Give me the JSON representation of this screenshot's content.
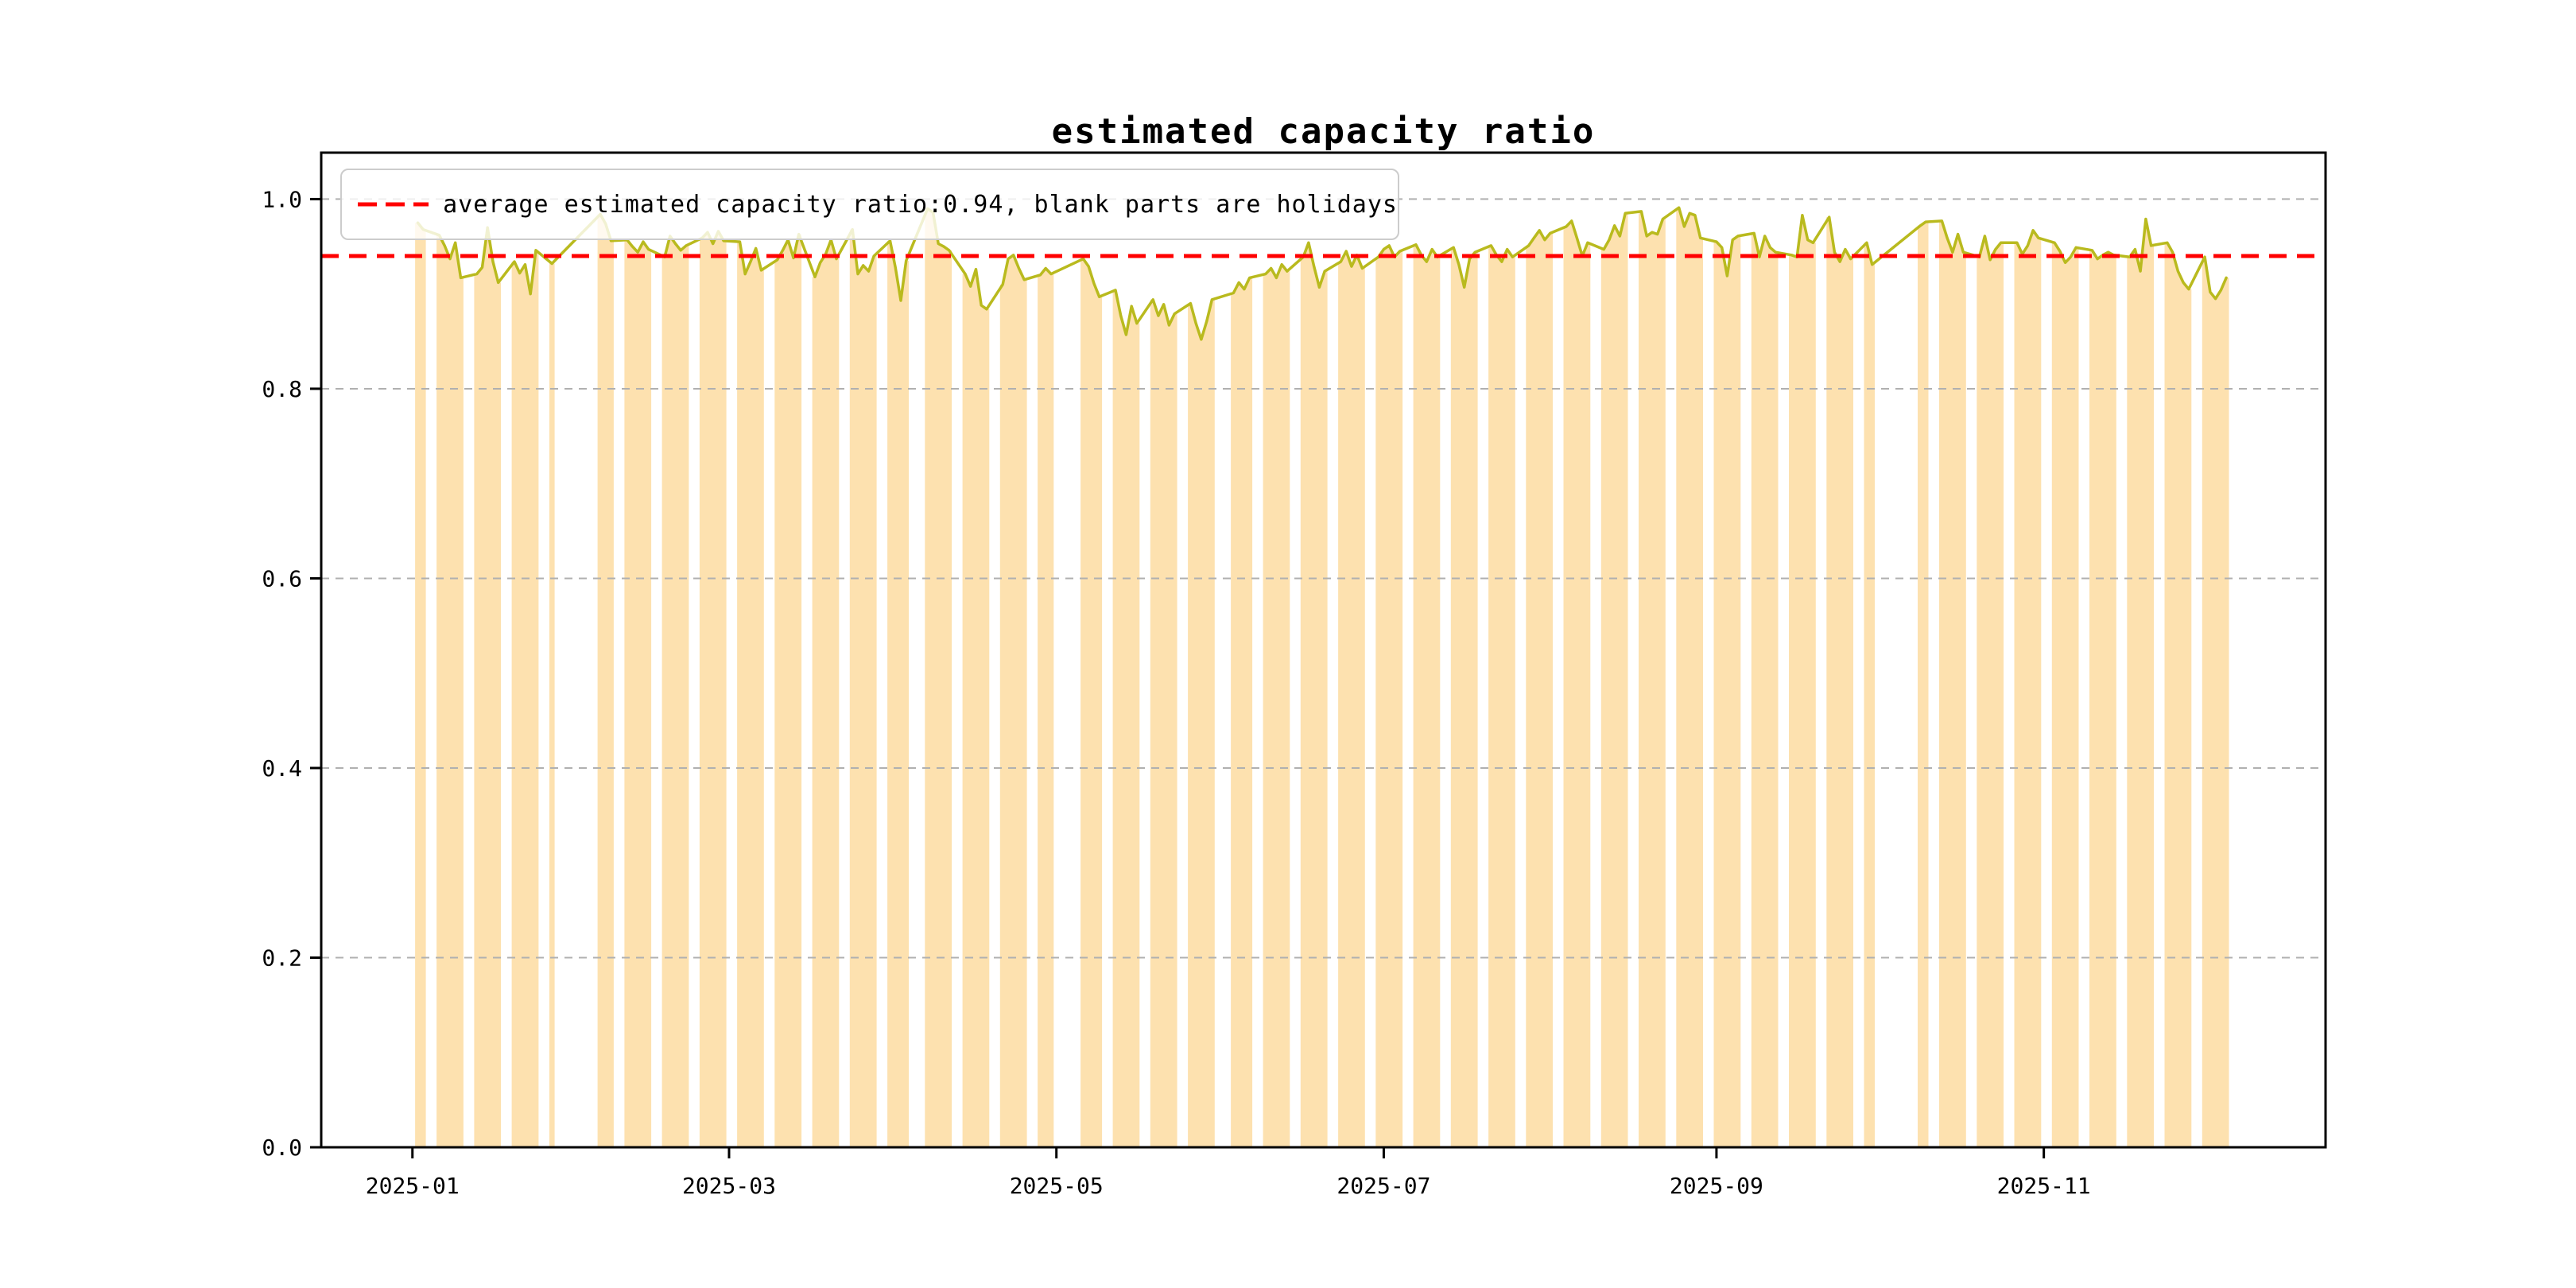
{
  "page": {
    "background": "#ffffff"
  },
  "chart_data": {
    "type": "area",
    "title": "estimated capacity ratio",
    "xlabel": "",
    "ylabel": "",
    "legend": {
      "label": "average estimated capacity ratio:0.94, blank parts are holidays",
      "position": "upper left",
      "sample_style": "red-dashed-line"
    },
    "average_line": {
      "value": 0.94,
      "style": "dashed",
      "color": "#ff0000"
    },
    "ylim": [
      0.0,
      1.049
    ],
    "xlim_days": [
      -17,
      356.5
    ],
    "x_epoch": "2025-01-01",
    "grid": {
      "axis": "y",
      "style": "dashed",
      "color": "#b0b0b0"
    },
    "yticks": [
      {
        "label": "0.0",
        "value": 0.0
      },
      {
        "label": "0.2",
        "value": 0.2
      },
      {
        "label": "0.4",
        "value": 0.4
      },
      {
        "label": "0.6",
        "value": 0.6
      },
      {
        "label": "0.8",
        "value": 0.8
      },
      {
        "label": "1.0",
        "value": 1.0
      }
    ],
    "xticks": [
      {
        "label": "2025-01",
        "date": "2025-01-01"
      },
      {
        "label": "2025-03",
        "date": "2025-03-01"
      },
      {
        "label": "2025-05",
        "date": "2025-05-01"
      },
      {
        "label": "2025-07",
        "date": "2025-07-01"
      },
      {
        "label": "2025-09",
        "date": "2025-09-01"
      },
      {
        "label": "2025-11",
        "date": "2025-11-01"
      }
    ],
    "colors": {
      "line": "#b9ba1e",
      "fill": "#fde1af",
      "average_line": "#ff0000",
      "grid": "#b0b0b0",
      "spine": "#000000",
      "legend_border": "#cccccc"
    },
    "series": [
      {
        "name": "estimated capacity ratio",
        "points": [
          [
            "2025-01-02",
            0.975
          ],
          [
            "2025-01-03",
            0.968
          ],
          [
            "2025-01-06",
            0.962
          ],
          [
            "2025-01-07",
            0.951
          ],
          [
            "2025-01-08",
            0.937
          ],
          [
            "2025-01-09",
            0.954
          ],
          [
            "2025-01-10",
            0.917
          ],
          [
            "2025-01-13",
            0.921
          ],
          [
            "2025-01-14",
            0.928
          ],
          [
            "2025-01-15",
            0.97
          ],
          [
            "2025-01-16",
            0.934
          ],
          [
            "2025-01-17",
            0.912
          ],
          [
            "2025-01-20",
            0.934
          ],
          [
            "2025-01-21",
            0.922
          ],
          [
            "2025-01-22",
            0.931
          ],
          [
            "2025-01-23",
            0.9
          ],
          [
            "2025-01-24",
            0.946
          ],
          [
            "2025-01-27",
            0.932
          ],
          [
            "2025-02-05",
            0.984
          ],
          [
            "2025-02-06",
            0.974
          ],
          [
            "2025-02-07",
            0.956
          ],
          [
            "2025-02-10",
            0.957
          ],
          [
            "2025-02-11",
            0.95
          ],
          [
            "2025-02-12",
            0.944
          ],
          [
            "2025-02-13",
            0.955
          ],
          [
            "2025-02-14",
            0.947
          ],
          [
            "2025-02-17",
            0.939
          ],
          [
            "2025-02-18",
            0.961
          ],
          [
            "2025-02-19",
            0.953
          ],
          [
            "2025-02-20",
            0.946
          ],
          [
            "2025-02-21",
            0.951
          ],
          [
            "2025-02-24",
            0.959
          ],
          [
            "2025-02-25",
            0.965
          ],
          [
            "2025-02-26",
            0.953
          ],
          [
            "2025-02-27",
            0.966
          ],
          [
            "2025-02-28",
            0.956
          ],
          [
            "2025-03-03",
            0.955
          ],
          [
            "2025-03-04",
            0.921
          ],
          [
            "2025-03-05",
            0.934
          ],
          [
            "2025-03-06",
            0.948
          ],
          [
            "2025-03-07",
            0.925
          ],
          [
            "2025-03-10",
            0.936
          ],
          [
            "2025-03-11",
            0.946
          ],
          [
            "2025-03-12",
            0.957
          ],
          [
            "2025-03-13",
            0.938
          ],
          [
            "2025-03-14",
            0.963
          ],
          [
            "2025-03-17",
            0.918
          ],
          [
            "2025-03-18",
            0.933
          ],
          [
            "2025-03-19",
            0.942
          ],
          [
            "2025-03-20",
            0.957
          ],
          [
            "2025-03-21",
            0.937
          ],
          [
            "2025-03-24",
            0.968
          ],
          [
            "2025-03-25",
            0.921
          ],
          [
            "2025-03-26",
            0.93
          ],
          [
            "2025-03-27",
            0.924
          ],
          [
            "2025-03-28",
            0.94
          ],
          [
            "2025-03-31",
            0.956
          ],
          [
            "2025-04-01",
            0.928
          ],
          [
            "2025-04-02",
            0.893
          ],
          [
            "2025-04-03",
            0.935
          ],
          [
            "2025-04-07",
            0.99
          ],
          [
            "2025-04-08",
            0.986
          ],
          [
            "2025-04-09",
            0.953
          ],
          [
            "2025-04-10",
            0.95
          ],
          [
            "2025-04-11",
            0.946
          ],
          [
            "2025-04-14",
            0.921
          ],
          [
            "2025-04-15",
            0.908
          ],
          [
            "2025-04-16",
            0.926
          ],
          [
            "2025-04-17",
            0.888
          ],
          [
            "2025-04-18",
            0.884
          ],
          [
            "2025-04-21",
            0.91
          ],
          [
            "2025-04-22",
            0.937
          ],
          [
            "2025-04-23",
            0.941
          ],
          [
            "2025-04-24",
            0.927
          ],
          [
            "2025-04-25",
            0.915
          ],
          [
            "2025-04-28",
            0.92
          ],
          [
            "2025-04-29",
            0.927
          ],
          [
            "2025-04-30",
            0.921
          ],
          [
            "2025-05-06",
            0.937
          ],
          [
            "2025-05-07",
            0.929
          ],
          [
            "2025-05-08",
            0.911
          ],
          [
            "2025-05-09",
            0.897
          ],
          [
            "2025-05-12",
            0.904
          ],
          [
            "2025-05-13",
            0.877
          ],
          [
            "2025-05-14",
            0.857
          ],
          [
            "2025-05-15",
            0.887
          ],
          [
            "2025-05-16",
            0.869
          ],
          [
            "2025-05-19",
            0.894
          ],
          [
            "2025-05-20",
            0.877
          ],
          [
            "2025-05-21",
            0.889
          ],
          [
            "2025-05-22",
            0.867
          ],
          [
            "2025-05-23",
            0.879
          ],
          [
            "2025-05-26",
            0.89
          ],
          [
            "2025-05-27",
            0.869
          ],
          [
            "2025-05-28",
            0.852
          ],
          [
            "2025-05-29",
            0.871
          ],
          [
            "2025-05-30",
            0.894
          ],
          [
            "2025-06-03",
            0.901
          ],
          [
            "2025-06-04",
            0.912
          ],
          [
            "2025-06-05",
            0.905
          ],
          [
            "2025-06-06",
            0.917
          ],
          [
            "2025-06-09",
            0.921
          ],
          [
            "2025-06-10",
            0.927
          ],
          [
            "2025-06-11",
            0.917
          ],
          [
            "2025-06-12",
            0.931
          ],
          [
            "2025-06-13",
            0.924
          ],
          [
            "2025-06-16",
            0.939
          ],
          [
            "2025-06-17",
            0.954
          ],
          [
            "2025-06-18",
            0.929
          ],
          [
            "2025-06-19",
            0.907
          ],
          [
            "2025-06-20",
            0.924
          ],
          [
            "2025-06-23",
            0.934
          ],
          [
            "2025-06-24",
            0.945
          ],
          [
            "2025-06-25",
            0.929
          ],
          [
            "2025-06-26",
            0.941
          ],
          [
            "2025-06-27",
            0.927
          ],
          [
            "2025-06-30",
            0.939
          ],
          [
            "2025-07-01",
            0.947
          ],
          [
            "2025-07-02",
            0.951
          ],
          [
            "2025-07-03",
            0.939
          ],
          [
            "2025-07-04",
            0.945
          ],
          [
            "2025-07-07",
            0.952
          ],
          [
            "2025-07-08",
            0.941
          ],
          [
            "2025-07-09",
            0.934
          ],
          [
            "2025-07-10",
            0.947
          ],
          [
            "2025-07-11",
            0.939
          ],
          [
            "2025-07-14",
            0.949
          ],
          [
            "2025-07-15",
            0.931
          ],
          [
            "2025-07-16",
            0.907
          ],
          [
            "2025-07-17",
            0.937
          ],
          [
            "2025-07-18",
            0.944
          ],
          [
            "2025-07-21",
            0.951
          ],
          [
            "2025-07-22",
            0.941
          ],
          [
            "2025-07-23",
            0.934
          ],
          [
            "2025-07-24",
            0.947
          ],
          [
            "2025-07-25",
            0.939
          ],
          [
            "2025-07-28",
            0.951
          ],
          [
            "2025-07-29",
            0.959
          ],
          [
            "2025-07-30",
            0.967
          ],
          [
            "2025-07-31",
            0.957
          ],
          [
            "2025-08-01",
            0.964
          ],
          [
            "2025-08-04",
            0.971
          ],
          [
            "2025-08-05",
            0.977
          ],
          [
            "2025-08-06",
            0.959
          ],
          [
            "2025-08-07",
            0.94
          ],
          [
            "2025-08-08",
            0.954
          ],
          [
            "2025-08-11",
            0.947
          ],
          [
            "2025-08-12",
            0.957
          ],
          [
            "2025-08-13",
            0.972
          ],
          [
            "2025-08-14",
            0.961
          ],
          [
            "2025-08-15",
            0.985
          ],
          [
            "2025-08-18",
            0.987
          ],
          [
            "2025-08-19",
            0.961
          ],
          [
            "2025-08-20",
            0.965
          ],
          [
            "2025-08-21",
            0.963
          ],
          [
            "2025-08-22",
            0.979
          ],
          [
            "2025-08-25",
            0.991
          ],
          [
            "2025-08-26",
            0.971
          ],
          [
            "2025-08-27",
            0.985
          ],
          [
            "2025-08-28",
            0.983
          ],
          [
            "2025-08-29",
            0.959
          ],
          [
            "2025-09-01",
            0.955
          ],
          [
            "2025-09-02",
            0.949
          ],
          [
            "2025-09-03",
            0.919
          ],
          [
            "2025-09-04",
            0.957
          ],
          [
            "2025-09-05",
            0.961
          ],
          [
            "2025-09-08",
            0.964
          ],
          [
            "2025-09-09",
            0.939
          ],
          [
            "2025-09-10",
            0.961
          ],
          [
            "2025-09-11",
            0.949
          ],
          [
            "2025-09-12",
            0.944
          ],
          [
            "2025-09-15",
            0.941
          ],
          [
            "2025-09-16",
            0.939
          ],
          [
            "2025-09-17",
            0.983
          ],
          [
            "2025-09-18",
            0.957
          ],
          [
            "2025-09-19",
            0.954
          ],
          [
            "2025-09-22",
            0.981
          ],
          [
            "2025-09-23",
            0.944
          ],
          [
            "2025-09-24",
            0.934
          ],
          [
            "2025-09-25",
            0.947
          ],
          [
            "2025-09-26",
            0.937
          ],
          [
            "2025-09-29",
            0.954
          ],
          [
            "2025-09-30",
            0.931
          ],
          [
            "2025-10-09",
            0.972
          ],
          [
            "2025-10-10",
            0.976
          ],
          [
            "2025-10-13",
            0.977
          ],
          [
            "2025-10-14",
            0.959
          ],
          [
            "2025-10-15",
            0.944
          ],
          [
            "2025-10-16",
            0.963
          ],
          [
            "2025-10-17",
            0.944
          ],
          [
            "2025-10-20",
            0.939
          ],
          [
            "2025-10-21",
            0.961
          ],
          [
            "2025-10-22",
            0.936
          ],
          [
            "2025-10-23",
            0.947
          ],
          [
            "2025-10-24",
            0.954
          ],
          [
            "2025-10-27",
            0.954
          ],
          [
            "2025-10-28",
            0.942
          ],
          [
            "2025-10-29",
            0.951
          ],
          [
            "2025-10-30",
            0.967
          ],
          [
            "2025-10-31",
            0.959
          ],
          [
            "2025-11-03",
            0.954
          ],
          [
            "2025-11-04",
            0.945
          ],
          [
            "2025-11-05",
            0.933
          ],
          [
            "2025-11-06",
            0.939
          ],
          [
            "2025-11-07",
            0.949
          ],
          [
            "2025-11-10",
            0.946
          ],
          [
            "2025-11-11",
            0.937
          ],
          [
            "2025-11-12",
            0.941
          ],
          [
            "2025-11-13",
            0.944
          ],
          [
            "2025-11-14",
            0.941
          ],
          [
            "2025-11-17",
            0.939
          ],
          [
            "2025-11-18",
            0.947
          ],
          [
            "2025-11-19",
            0.924
          ],
          [
            "2025-11-20",
            0.979
          ],
          [
            "2025-11-21",
            0.951
          ],
          [
            "2025-11-24",
            0.954
          ],
          [
            "2025-11-25",
            0.944
          ],
          [
            "2025-11-26",
            0.924
          ],
          [
            "2025-11-27",
            0.912
          ],
          [
            "2025-11-28",
            0.905
          ],
          [
            "2025-12-01",
            0.939
          ],
          [
            "2025-12-02",
            0.902
          ],
          [
            "2025-12-03",
            0.895
          ],
          [
            "2025-12-04",
            0.904
          ],
          [
            "2025-12-05",
            0.917
          ]
        ]
      }
    ]
  }
}
